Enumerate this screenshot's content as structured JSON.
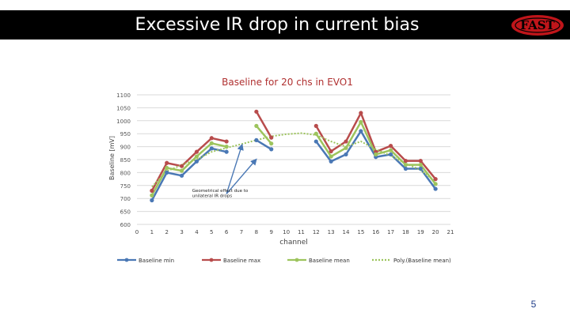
{
  "slide": {
    "title": "Excessive IR drop in current bias",
    "logo_text": "FAST",
    "page_number": "5"
  },
  "chart_data": {
    "type": "line",
    "title": "Baseline for 20 chs in EVO1",
    "xlabel": "channel",
    "ylabel": "Baseline [mV]",
    "xlim": [
      0,
      21
    ],
    "ylim": [
      600,
      1100
    ],
    "xticks": [
      0,
      1,
      2,
      3,
      4,
      5,
      6,
      7,
      8,
      9,
      10,
      11,
      12,
      13,
      14,
      15,
      16,
      17,
      18,
      19,
      20,
      21
    ],
    "yticks": [
      600,
      650,
      700,
      750,
      800,
      850,
      900,
      950,
      1000,
      1050,
      1100
    ],
    "grid": true,
    "legend": "bottom",
    "annotation": {
      "text_line1": "Geometrical effect due to",
      "text_line2": "unilateral IR drops",
      "x": 7.0,
      "y": 705
    },
    "series": [
      {
        "name": "Baseline min",
        "color": "#4a78b5",
        "style": "solid",
        "x": [
          1,
          2,
          3,
          4,
          5,
          6,
          8,
          9,
          12,
          13,
          14,
          15,
          16,
          17,
          18,
          19,
          20
        ],
        "values": [
          693,
          800,
          788,
          843,
          893,
          880,
          925,
          890,
          920,
          843,
          870,
          960,
          860,
          870,
          815,
          815,
          737
        ]
      },
      {
        "name": "Baseline max",
        "color": "#b84c4c",
        "style": "solid",
        "x": [
          1,
          2,
          3,
          4,
          5,
          6,
          8,
          9,
          12,
          13,
          14,
          15,
          16,
          17,
          18,
          19,
          20
        ],
        "values": [
          730,
          837,
          825,
          880,
          933,
          920,
          1035,
          935,
          980,
          882,
          920,
          1030,
          880,
          903,
          845,
          845,
          775
        ]
      },
      {
        "name": "Baseline mean",
        "color": "#9dc45d",
        "style": "solid",
        "x": [
          1,
          2,
          3,
          4,
          5,
          6,
          8,
          9,
          12,
          13,
          14,
          15,
          16,
          17,
          18,
          19,
          20
        ],
        "values": [
          712,
          818,
          807,
          862,
          913,
          900,
          980,
          912,
          950,
          862,
          895,
          995,
          870,
          886,
          830,
          830,
          756
        ]
      },
      {
        "name": "Poly.(Baseline mean)",
        "color": "#9dc45d",
        "style": "dotted",
        "x": [
          1,
          2,
          3,
          4,
          5,
          6,
          7,
          8,
          9,
          10,
          11,
          12,
          13,
          14,
          15,
          16,
          17,
          18,
          19,
          20
        ],
        "values": [
          745,
          805,
          830,
          850,
          880,
          895,
          910,
          925,
          940,
          948,
          952,
          945,
          920,
          900,
          920,
          890,
          865,
          835,
          810,
          765
        ]
      }
    ]
  }
}
